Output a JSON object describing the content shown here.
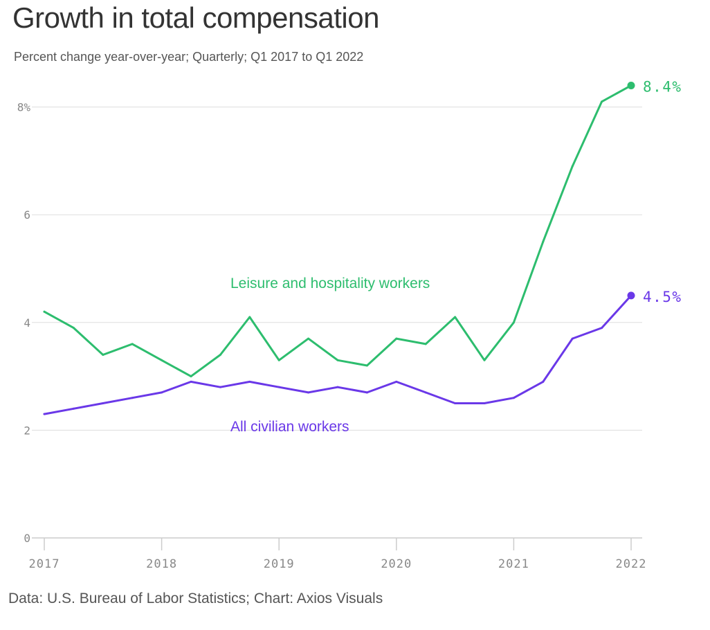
{
  "title": "Growth in total compensation",
  "subtitle": "Percent change year-over-year; Quarterly; Q1 2017 to Q1 2022",
  "source": "Data: U.S. Bureau of Labor Statistics; Chart: Axios Visuals",
  "colors": {
    "leisure": "#2dbd6e",
    "civilian": "#6a38e8",
    "grid": "#dddddd",
    "tick_text": "#888888"
  },
  "chart_data": {
    "type": "line",
    "title": "Growth in total compensation",
    "subtitle": "Percent change year-over-year; Quarterly; Q1 2017 to Q1 2022",
    "xlabel": "",
    "ylabel": "",
    "x": [
      "Q1 2017",
      "Q2 2017",
      "Q3 2017",
      "Q4 2017",
      "Q1 2018",
      "Q2 2018",
      "Q3 2018",
      "Q4 2018",
      "Q1 2019",
      "Q2 2019",
      "Q3 2019",
      "Q4 2019",
      "Q1 2020",
      "Q2 2020",
      "Q3 2020",
      "Q4 2020",
      "Q1 2021",
      "Q2 2021",
      "Q3 2021",
      "Q4 2021",
      "Q1 2022"
    ],
    "x_ticks": [
      "2017",
      "2018",
      "2019",
      "2020",
      "2021",
      "2022"
    ],
    "y_ticks": [
      "0",
      "2",
      "4",
      "6",
      "8%"
    ],
    "ylim": [
      0,
      8.4
    ],
    "grid": true,
    "series": [
      {
        "name": "Leisure and hospitality workers",
        "color": "#2dbd6e",
        "values": [
          4.2,
          3.9,
          3.4,
          3.6,
          3.3,
          3.0,
          3.4,
          4.1,
          3.3,
          3.7,
          3.3,
          3.2,
          3.7,
          3.6,
          4.1,
          3.3,
          4.0,
          5.5,
          6.9,
          8.1,
          8.4
        ],
        "end_label": "8.4%"
      },
      {
        "name": "All civilian workers",
        "color": "#6a38e8",
        "values": [
          2.3,
          2.4,
          2.5,
          2.6,
          2.7,
          2.9,
          2.8,
          2.9,
          2.8,
          2.7,
          2.8,
          2.7,
          2.9,
          2.7,
          2.5,
          2.5,
          2.6,
          2.9,
          3.7,
          3.9,
          4.5
        ],
        "end_label": "4.5%"
      }
    ]
  }
}
